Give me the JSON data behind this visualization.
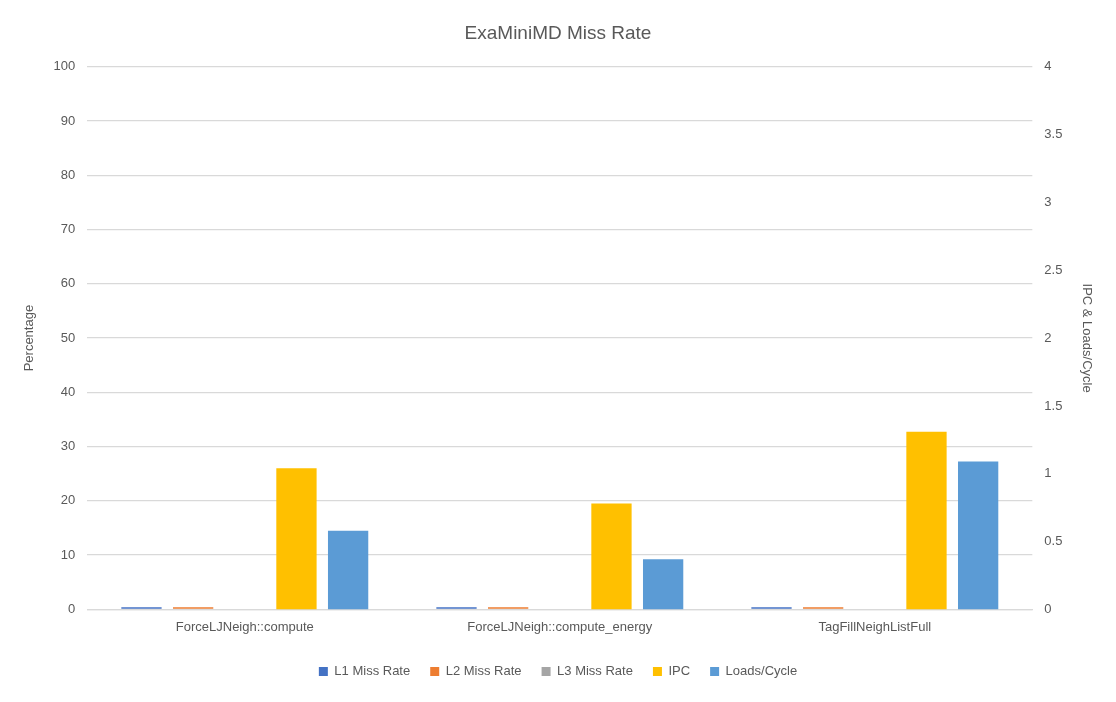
{
  "chart_data": {
    "type": "bar",
    "title": "ExaMiniMD Miss Rate",
    "ylabel": "Percentage",
    "y2label": "IPC & Loads/Cycle",
    "categories": [
      "ForceLJNeigh::compute",
      "ForceLJNeigh::compute_energy",
      "TagFillNeighListFull"
    ],
    "series": [
      {
        "name": "L1 Miss Rate",
        "color": "#4472c4",
        "values": [
          0.4,
          0.4,
          0.4
        ]
      },
      {
        "name": "L2 Miss Rate",
        "color": "#ed7d31",
        "values": [
          0.4,
          0.4,
          0.4
        ]
      },
      {
        "name": "L3 Miss Rate",
        "color": "#a5a5a5",
        "values": [
          0,
          0,
          0
        ]
      },
      {
        "name": "IPC",
        "color": "#ffc000",
        "values": [
          1.04,
          0.78,
          1.31
        ],
        "axis": "y2"
      },
      {
        "name": "Loads/Cycle",
        "color": "#5b9bd5",
        "values": [
          0.58,
          0.37,
          1.09
        ],
        "axis": "y2"
      }
    ],
    "ylim": [
      0,
      100
    ],
    "yticks": [
      0,
      10,
      20,
      30,
      40,
      50,
      60,
      70,
      80,
      90,
      100
    ],
    "y2lim": [
      0,
      4
    ],
    "y2ticks": [
      0,
      0.5,
      1,
      1.5,
      2,
      2.5,
      3,
      3.5,
      4
    ],
    "grid": "y",
    "legend": "bottom"
  }
}
